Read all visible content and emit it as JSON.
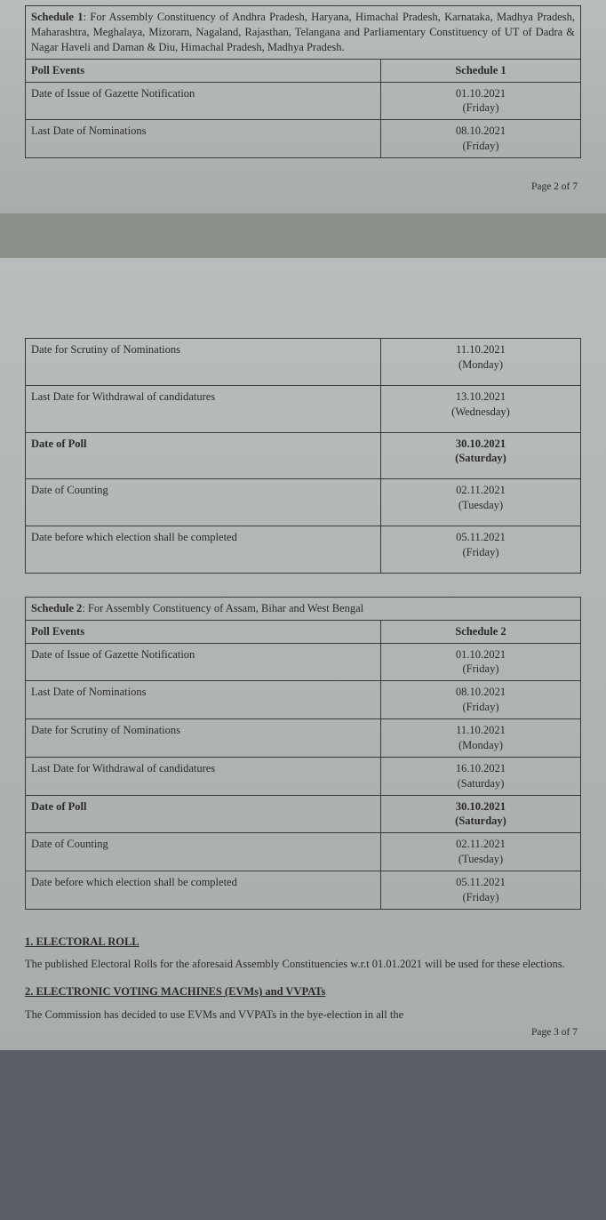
{
  "schedule1": {
    "title_prefix": "Schedule 1",
    "title_rest": ": For Assembly Constituency of Andhra Pradesh, Haryana, Himachal Pradesh, Karnataka, Madhya Pradesh, Maharashtra, Meghalaya, Mizoram, Nagaland, Rajasthan, Telangana and Parliamentary Constituency of UT of Dadra & Nagar Haveli and Daman & Diu, Himachal Pradesh, Madhya Pradesh.",
    "header_event": "Poll Events",
    "header_date": "Schedule 1",
    "rows_top": [
      {
        "event": "Date of Issue of Gazette Notification",
        "date": "01.10.2021",
        "day": "(Friday)",
        "bold": false
      },
      {
        "event": "Last Date of Nominations",
        "date": "08.10.2021",
        "day": "(Friday)",
        "bold": false
      }
    ],
    "rows_bottom": [
      {
        "event": "Date for Scrutiny of Nominations",
        "date": "11.10.2021",
        "day": "(Monday)",
        "bold": false
      },
      {
        "event": "Last Date for Withdrawal of candidatures",
        "date": "13.10.2021",
        "day": "(Wednesday)",
        "bold": false
      },
      {
        "event": "Date of Poll",
        "date": "30.10.2021",
        "day": "(Saturday)",
        "bold": true
      },
      {
        "event": "Date of Counting",
        "date": "02.11.2021",
        "day": "(Tuesday)",
        "bold": false
      },
      {
        "event": "Date before which election shall be completed",
        "date": "05.11.2021",
        "day": "(Friday)",
        "bold": false
      }
    ]
  },
  "schedule2": {
    "title_prefix": "Schedule 2",
    "title_rest": ": For Assembly Constituency of Assam, Bihar and West Bengal",
    "header_event": "Poll Events",
    "header_date": "Schedule 2",
    "rows": [
      {
        "event": "Date of Issue of Gazette Notification",
        "date": "01.10.2021",
        "day": "(Friday)",
        "bold": false
      },
      {
        "event": "Last Date of Nominations",
        "date": "08.10.2021",
        "day": "(Friday)",
        "bold": false
      },
      {
        "event": "Date for Scrutiny of Nominations",
        "date": "11.10.2021",
        "day": "(Monday)",
        "bold": false
      },
      {
        "event": "Last Date for Withdrawal of candidatures",
        "date": "16.10.2021",
        "day": "(Saturday)",
        "bold": false
      },
      {
        "event": "Date of Poll",
        "date": "30.10.2021",
        "day": "(Saturday)",
        "bold": true
      },
      {
        "event": "Date of Counting",
        "date": "02.11.2021",
        "day": "(Tuesday)",
        "bold": false
      },
      {
        "event": "Date before which election shall be completed",
        "date": "05.11.2021",
        "day": "(Friday)",
        "bold": false
      }
    ]
  },
  "section1": {
    "head": "1.  ELECTORAL ROLL",
    "body": "The published Electoral Rolls for the aforesaid Assembly Constituencies w.r.t 01.01.2021 will be used for these elections."
  },
  "section2": {
    "head": "2.  ELECTRONIC VOTING MACHINES (EVMs) and VVPATs",
    "body": "The Commission has decided to use EVMs and VVPATs in the bye-election in all the"
  },
  "page2label": "Page 2 of 7",
  "page3label": "Page 3 of 7"
}
